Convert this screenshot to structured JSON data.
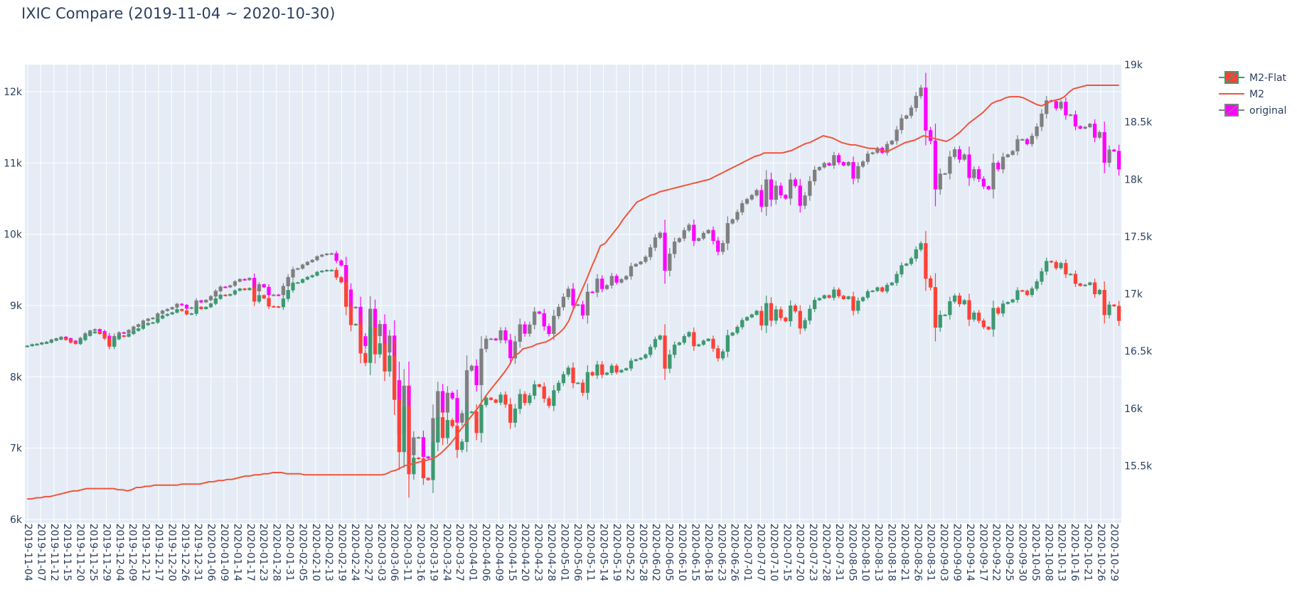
{
  "chart_data": {
    "type": "candlestick",
    "title": "IXIC Compare (2019-11-04 ~ 2020-10-30)",
    "xlabel": "",
    "ylabel_left": "",
    "ylabel_right": "",
    "ylim_left": [
      5950,
      12380
    ],
    "ylim_right": [
      15000,
      19000
    ],
    "yticks_left": [
      6000,
      7000,
      8000,
      9000,
      10000,
      11000,
      12000
    ],
    "yticks_left_labels": [
      "6k",
      "7k",
      "8k",
      "9k",
      "10k",
      "11k",
      "12k"
    ],
    "yticks_right": [
      15500,
      16000,
      16500,
      17000,
      17500,
      18000,
      18500,
      19000
    ],
    "yticks_right_labels": [
      "15.5k",
      "16k",
      "16.5k",
      "17k",
      "17.5k",
      "18k",
      "18.5k",
      "19k"
    ],
    "x_tick_labels": [
      "2019-11-04",
      "2019-11-07",
      "2019-11-12",
      "2019-11-15",
      "2019-11-20",
      "2019-11-25",
      "2019-11-29",
      "2019-12-04",
      "2019-12-09",
      "2019-12-12",
      "2019-12-17",
      "2019-12-20",
      "2019-12-26",
      "2019-12-31",
      "2020-01-06",
      "2020-01-09",
      "2020-01-14",
      "2020-01-17",
      "2020-01-23",
      "2020-01-28",
      "2020-01-31",
      "2020-02-05",
      "2020-02-10",
      "2020-02-13",
      "2020-02-19",
      "2020-02-24",
      "2020-02-27",
      "2020-03-03",
      "2020-03-06",
      "2020-03-11",
      "2020-03-16",
      "2020-03-19",
      "2020-03-24",
      "2020-03-27",
      "2020-04-01",
      "2020-04-06",
      "2020-04-09",
      "2020-04-15",
      "2020-04-20",
      "2020-04-23",
      "2020-04-28",
      "2020-05-01",
      "2020-05-06",
      "2020-05-11",
      "2020-05-14",
      "2020-05-19",
      "2020-05-22",
      "2020-05-28",
      "2020-06-02",
      "2020-06-05",
      "2020-06-10",
      "2020-06-15",
      "2020-06-18",
      "2020-06-23",
      "2020-06-26",
      "2020-07-01",
      "2020-07-07",
      "2020-07-10",
      "2020-07-15",
      "2020-07-20",
      "2020-07-23",
      "2020-07-28",
      "2020-07-31",
      "2020-08-05",
      "2020-08-10",
      "2020-08-13",
      "2020-08-18",
      "2020-08-21",
      "2020-08-26",
      "2020-08-31",
      "2020-09-03",
      "2020-09-09",
      "2020-09-14",
      "2020-09-17",
      "2020-09-22",
      "2020-09-25",
      "2020-09-30",
      "2020-10-05",
      "2020-10-08",
      "2020-10-13",
      "2020-10-16",
      "2020-10-21",
      "2020-10-26",
      "2020-10-29"
    ],
    "series": [
      {
        "name": "original",
        "kind": "candlestick",
        "axis": "left",
        "increasing_color": "#7f7f7f",
        "decreasing_color": "#ff00ff",
        "values": [
          8434,
          8455,
          8462,
          8479,
          8490,
          8522,
          8539,
          8560,
          8540,
          8505,
          8487,
          8545,
          8608,
          8649,
          8667,
          8638,
          8574,
          8458,
          8570,
          8622,
          8616,
          8656,
          8703,
          8736,
          8787,
          8814,
          8827,
          8887,
          8927,
          8950,
          8975,
          9022,
          9007,
          8960,
          8972,
          9070,
          9047,
          9078,
          9130,
          9204,
          9263,
          9258,
          9281,
          9338,
          9370,
          9359,
          9386,
          9203,
          9296,
          9260,
          9150,
          9151,
          9150,
          9273,
          9398,
          9508,
          9521,
          9572,
          9611,
          9639,
          9689,
          9711,
          9726,
          9731,
          9629,
          9565,
          9222,
          8966,
          8980,
          8567,
          8436,
          8952,
          8575,
          8738,
          8344,
          8576,
          7950,
          7201,
          7874,
          6904,
          7150,
          7151,
          6880,
          6860,
          7418,
          7797,
          7502,
          7774,
          7700,
          7360,
          7487,
          8090,
          8153,
          7887,
          8393,
          8532,
          8535,
          8516,
          8650,
          8515,
          8263,
          8495,
          8734,
          8608,
          8731,
          8914,
          8889,
          8710,
          8604,
          8854,
          8979,
          9122,
          9234,
          9002,
          9014,
          8863,
          9192,
          9185,
          9375,
          9235,
          9284,
          9413,
          9325,
          9369,
          9412,
          9552,
          9582,
          9615,
          9683,
          9814,
          9953,
          10020,
          9492,
          9726,
          9895,
          9943,
          10056,
          10131,
          9910,
          9943,
          10017,
          10058,
          9909,
          9757,
          9875,
          10154,
          10207,
          10311,
          10433,
          10492,
          10548,
          10617,
          10390,
          10767,
          10488,
          10680,
          10550,
          10503,
          10767,
          10680,
          10402,
          10542,
          10745,
          10903,
          10941,
          10998,
          10968,
          11108,
          11010,
          10968,
          11011,
          10782,
          10953,
          11019,
          11129,
          11146,
          11210,
          11146,
          11264,
          11311,
          11466,
          11625,
          11665,
          11775,
          11940,
          12056,
          11458,
          11313,
          10632,
          10848,
          10853,
          11088,
          11190,
          11050,
          11117,
          10793,
          10910,
          10778,
          10672,
          10633,
          11002,
          10914,
          11085,
          11118,
          11167,
          11332,
          11332,
          11268,
          11380,
          11510,
          11691,
          11876,
          11863,
          11768,
          11856,
          11671,
          11678,
          11516,
          11485,
          11506,
          11548,
          11358,
          11431,
          11005,
          11186,
          11167,
          10912
        ]
      },
      {
        "name": "M2-Flat",
        "kind": "candlestick",
        "axis": "left",
        "increasing_color": "#3d9970",
        "decreasing_color": "#ff4136",
        "values": [
          8434,
          8453,
          8457,
          8472,
          8481,
          8510,
          8524,
          8540,
          8519,
          8482,
          8463,
          8518,
          8577,
          8615,
          8632,
          8603,
          8539,
          8426,
          8530,
          8578,
          8566,
          8603,
          8647,
          8677,
          8728,
          8753,
          8762,
          8821,
          8859,
          8880,
          8903,
          8947,
          8928,
          8879,
          8887,
          8981,
          8954,
          8980,
          9027,
          9097,
          9150,
          9140,
          9159,
          9210,
          9237,
          9220,
          9244,
          9059,
          9144,
          9104,
          8990,
          8986,
          8980,
          9096,
          9216,
          9319,
          9324,
          9368,
          9400,
          9423,
          9470,
          9486,
          9497,
          9498,
          9395,
          9329,
          8986,
          8729,
          8740,
          8332,
          8198,
          8692,
          8318,
          8468,
          8078,
          8296,
          7680,
          6947,
          7585,
          6637,
          6863,
          6852,
          6580,
          6554,
          7082,
          7431,
          7143,
          7392,
          7311,
          6978,
          7089,
          7500,
          7510,
          7215,
          7606,
          7705,
          7679,
          7640,
          7749,
          7614,
          7359,
          7552,
          7757,
          7636,
          7738,
          7893,
          7863,
          7696,
          7595,
          7809,
          7914,
          8035,
          8127,
          7915,
          7916,
          7779,
          8064,
          8022,
          8172,
          8031,
          8057,
          8154,
          8065,
          8094,
          8119,
          8225,
          8244,
          8264,
          8312,
          8418,
          8527,
          8577,
          8118,
          8312,
          8449,
          8481,
          8569,
          8625,
          8432,
          8453,
          8506,
          8532,
          8398,
          8262,
          8355,
          8582,
          8618,
          8699,
          8794,
          8836,
          8874,
          8924,
          8723,
          9032,
          8791,
          8945,
          8828,
          8782,
          8998,
          8921,
          8681,
          8792,
          8953,
          9077,
          9103,
          9143,
          9111,
          9222,
          9135,
          9094,
          9126,
          8930,
          9066,
          9114,
          9198,
          9207,
          9253,
          9200,
          9288,
          9320,
          9440,
          9563,
          9587,
          9660,
          9787,
          9873,
          9379,
          9256,
          8694,
          8869,
          8870,
          9058,
          9138,
          9021,
          9073,
          8806,
          8898,
          8788,
          8700,
          8667,
          8965,
          8891,
          9026,
          9048,
          9083,
          9212,
          9206,
          9151,
          9238,
          9338,
          9479,
          9623,
          9608,
          9527,
          9594,
          9440,
          9443,
          9308,
          9278,
          9291,
          9322,
          9163,
          9217,
          8869,
          9011,
          8993,
          8787
        ]
      },
      {
        "name": "M2",
        "kind": "line",
        "axis": "right",
        "color": "#ef553b",
        "values": [
          15210,
          15210,
          15220,
          15220,
          15230,
          15230,
          15240,
          15250,
          15260,
          15270,
          15280,
          15280,
          15290,
          15300,
          15300,
          15300,
          15300,
          15300,
          15300,
          15300,
          15290,
          15290,
          15280,
          15290,
          15310,
          15310,
          15320,
          15320,
          15330,
          15330,
          15330,
          15330,
          15330,
          15330,
          15340,
          15340,
          15340,
          15340,
          15340,
          15350,
          15360,
          15360,
          15370,
          15370,
          15380,
          15380,
          15390,
          15400,
          15410,
          15410,
          15420,
          15420,
          15430,
          15430,
          15440,
          15440,
          15440,
          15430,
          15430,
          15430,
          15430,
          15420,
          15420,
          15420,
          15420,
          15420,
          15420,
          15420,
          15420,
          15420,
          15420,
          15420,
          15420,
          15420,
          15420,
          15420,
          15420,
          15420,
          15420,
          15430,
          15450,
          15460,
          15480,
          15500,
          15510,
          15520,
          15530,
          15540,
          15550,
          15560,
          15580,
          15610,
          15650,
          15690,
          15740,
          15800,
          15850,
          15900,
          15950,
          16000,
          16060,
          16120,
          16170,
          16220,
          16270,
          16320,
          16380,
          16460,
          16480,
          16520,
          16530,
          16540,
          16560,
          16570,
          16580,
          16600,
          16630,
          16660,
          16700,
          16760,
          16860,
          16950,
          17040,
          17130,
          17230,
          17320,
          17420,
          17440,
          17490,
          17540,
          17590,
          17650,
          17700,
          17750,
          17800,
          17820,
          17840,
          17860,
          17870,
          17890,
          17900,
          17910,
          17920,
          17930,
          17940,
          17950,
          17960,
          17970,
          17980,
          17990,
          18000,
          18020,
          18040,
          18060,
          18080,
          18100,
          18120,
          18140,
          18160,
          18180,
          18200,
          18210,
          18230,
          18230,
          18230,
          18230,
          18230,
          18240,
          18250,
          18270,
          18290,
          18310,
          18320,
          18340,
          18360,
          18380,
          18370,
          18360,
          18340,
          18320,
          18310,
          18300,
          18300,
          18290,
          18280,
          18270,
          18270,
          18260,
          18250,
          18240,
          18260,
          18280,
          18300,
          18320,
          18330,
          18340,
          18360,
          18380,
          18370,
          18360,
          18350,
          18340,
          18330,
          18350,
          18380,
          18410,
          18450,
          18490,
          18520,
          18550,
          18580,
          18620,
          18660,
          18680,
          18690,
          18710,
          18720,
          18720,
          18720,
          18710,
          18690,
          18670,
          18650,
          18640,
          18660,
          18680,
          18690,
          18700,
          18720,
          18760,
          18790,
          18800,
          18810,
          18820,
          18820,
          18820,
          18820,
          18820,
          18820,
          18820,
          18820
        ]
      }
    ],
    "legend": [
      {
        "label": "M2-Flat",
        "kind": "candlestick",
        "up": "#3d9970",
        "down": "#ff4136"
      },
      {
        "label": "M2",
        "kind": "line",
        "color": "#ef553b"
      },
      {
        "label": "original",
        "kind": "candlestick",
        "up": "#7f7f7f",
        "down": "#ff00ff"
      }
    ],
    "legend_position": "top-right",
    "grid": true,
    "plot_bgcolor": "#e5ecf6"
  }
}
